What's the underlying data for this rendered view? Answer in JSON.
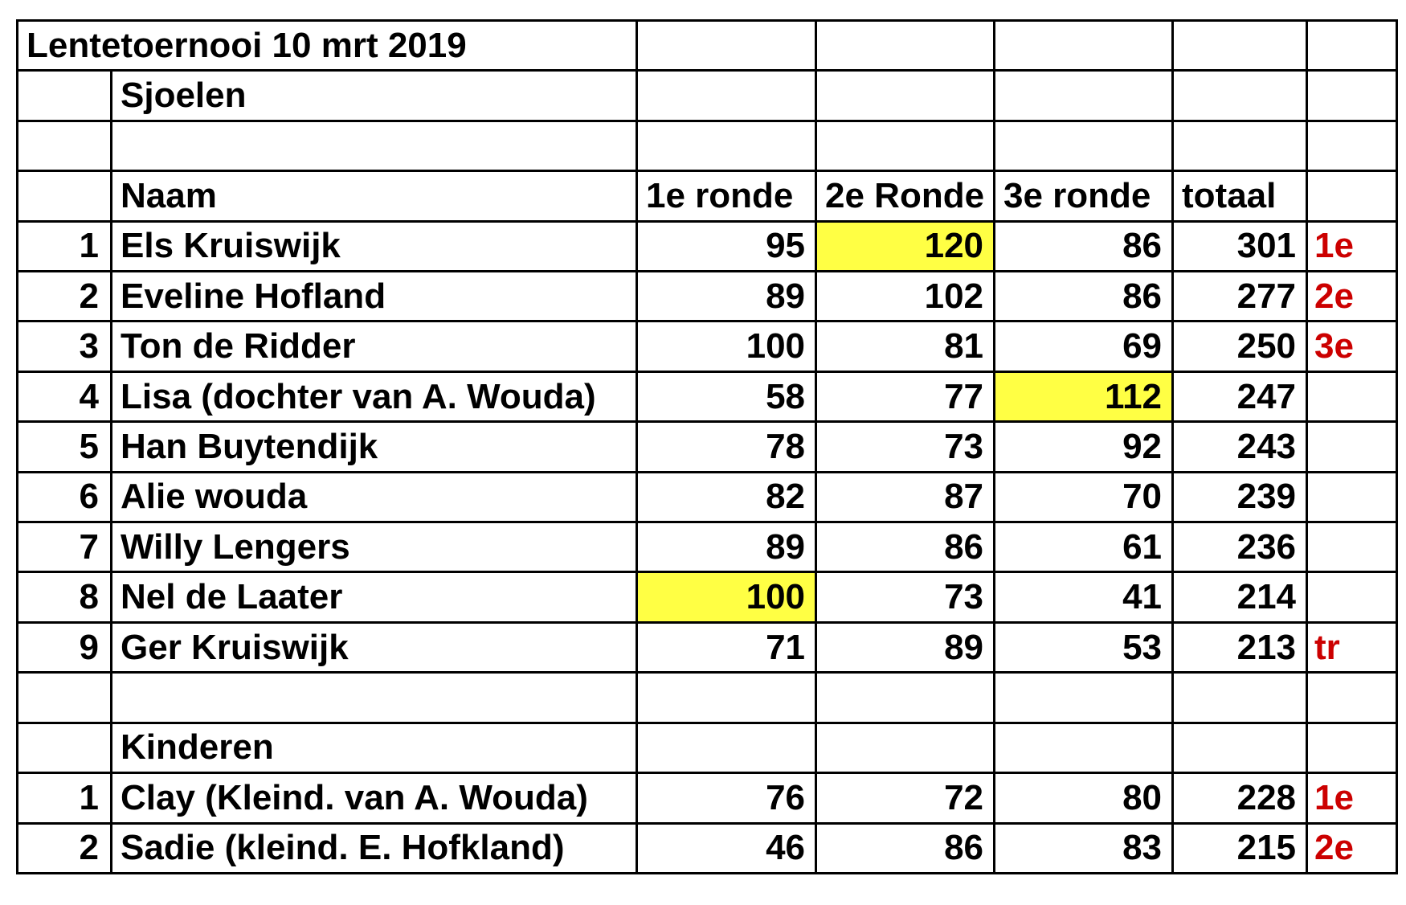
{
  "title": "Lentetoernooi 10 mrt 2019",
  "section_sjoelen": "Sjoelen",
  "headers": {
    "naam": "Naam",
    "ronde1": "1e ronde",
    "ronde2": "2e Ronde",
    "ronde3": "3e ronde",
    "totaal": "totaal"
  },
  "colors": {
    "highlight": "#ffff44",
    "place_text": "#cc0000",
    "border": "#000000"
  },
  "players": [
    {
      "rank": "1",
      "name": "Els Kruiswijk",
      "r1": "95",
      "r2": "120",
      "r3": "86",
      "total": "301",
      "place": "1e"
    },
    {
      "rank": "2",
      "name": "Eveline Hofland",
      "r1": "89",
      "r2": "102",
      "r3": "86",
      "total": "277",
      "place": "2e"
    },
    {
      "rank": "3",
      "name": "Ton de Ridder",
      "r1": "100",
      "r2": "81",
      "r3": "69",
      "total": "250",
      "place": "3e"
    },
    {
      "rank": "4",
      "name": "Lisa (dochter van A. Wouda)",
      "r1": "58",
      "r2": "77",
      "r3": "112",
      "total": "247",
      "place": ""
    },
    {
      "rank": "5",
      "name": "Han Buytendijk",
      "r1": "78",
      "r2": "73",
      "r3": "92",
      "total": "243",
      "place": ""
    },
    {
      "rank": "6",
      "name": "Alie wouda",
      "r1": "82",
      "r2": "87",
      "r3": "70",
      "total": "239",
      "place": ""
    },
    {
      "rank": "7",
      "name": "Willy Lengers",
      "r1": "89",
      "r2": "86",
      "r3": "61",
      "total": "236",
      "place": ""
    },
    {
      "rank": "8",
      "name": "Nel de Laater",
      "r1": "100",
      "r2": "73",
      "r3": "41",
      "total": "214",
      "place": ""
    },
    {
      "rank": "9",
      "name": "Ger Kruiswijk",
      "r1": "71",
      "r2": "89",
      "r3": "53",
      "total": "213",
      "place": "tr"
    }
  ],
  "section_kinderen": "Kinderen",
  "kinderen": [
    {
      "rank": "1",
      "name": "Clay (Kleind. van A. Wouda)",
      "r1": "76",
      "r2": "72",
      "r3": "80",
      "total": "228",
      "place": "1e"
    },
    {
      "rank": "2",
      "name": "Sadie (kleind. E. Hofkland)",
      "r1": "46",
      "r2": "86",
      "r3": "83",
      "total": "215",
      "place": "2e"
    }
  ]
}
